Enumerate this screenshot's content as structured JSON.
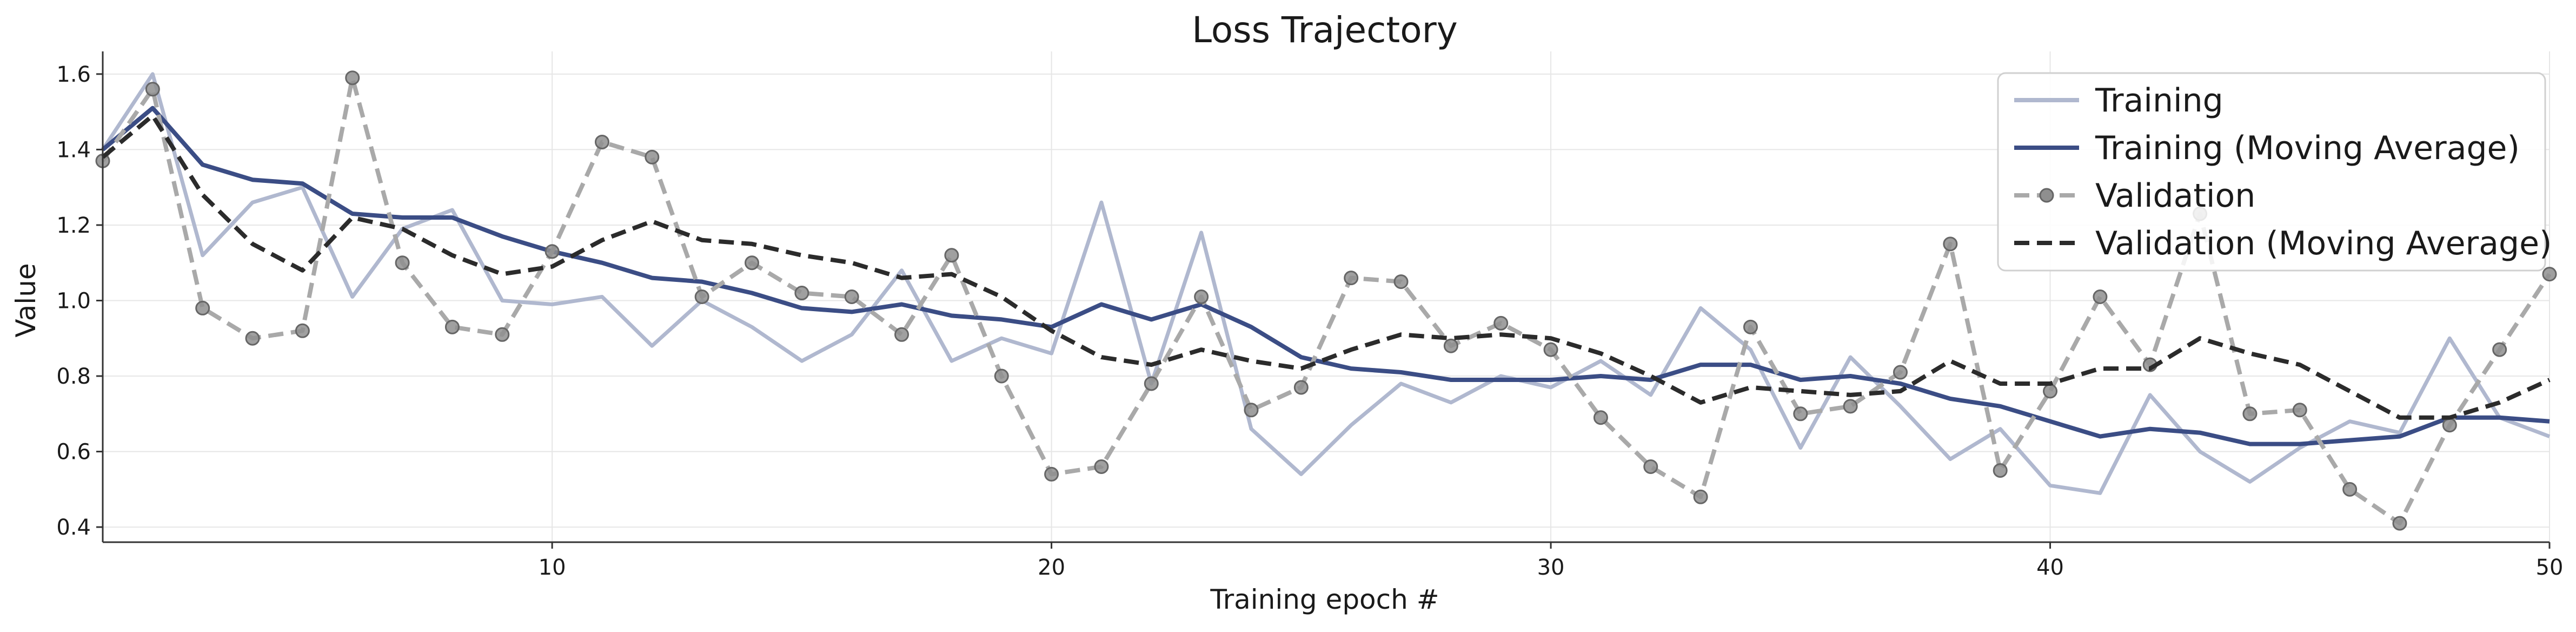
{
  "chart_data": {
    "type": "line",
    "title": "Loss Trajectory",
    "xlabel": "Training epoch #",
    "ylabel": "Value",
    "xlim": [
      1,
      50
    ],
    "ylim": [
      0.36,
      1.66
    ],
    "xticks": [
      10,
      20,
      30,
      40,
      50
    ],
    "yticks": [
      0.4,
      0.6,
      0.8,
      1.0,
      1.2,
      1.4,
      1.6
    ],
    "xtick_labels": [
      "10",
      "20",
      "30",
      "40",
      "50"
    ],
    "ytick_labels": [
      "0.4",
      "0.6",
      "0.8",
      "1.0",
      "1.2",
      "1.4",
      "1.6"
    ],
    "grid": true,
    "legend_position": "top-right",
    "x": [
      1,
      2,
      3,
      4,
      5,
      6,
      7,
      8,
      9,
      10,
      11,
      12,
      13,
      14,
      15,
      16,
      17,
      18,
      19,
      20,
      21,
      22,
      23,
      24,
      25,
      26,
      27,
      28,
      29,
      30,
      31,
      32,
      33,
      34,
      35,
      36,
      37,
      38,
      39,
      40,
      41,
      42,
      43,
      44,
      45,
      46,
      47,
      48,
      49,
      50
    ],
    "series": [
      {
        "name": "Training",
        "color": "#b0b8cf",
        "style": "solid",
        "markers": false,
        "values": [
          1.4,
          1.6,
          1.12,
          1.26,
          1.3,
          1.01,
          1.19,
          1.24,
          1.0,
          0.99,
          1.01,
          0.88,
          1.0,
          0.93,
          0.84,
          0.91,
          1.08,
          0.84,
          0.9,
          0.86,
          1.26,
          0.78,
          1.18,
          0.66,
          0.54,
          0.67,
          0.78,
          0.73,
          0.8,
          0.77,
          0.84,
          0.75,
          0.98,
          0.87,
          0.61,
          0.85,
          0.72,
          0.58,
          0.66,
          0.51,
          0.49,
          0.75,
          0.6,
          0.52,
          0.61,
          0.68,
          0.65,
          0.9,
          0.69,
          0.64
        ]
      },
      {
        "name": "Training (Moving Average)",
        "color": "#3b4d85",
        "style": "solid",
        "markers": false,
        "values": [
          1.4,
          1.51,
          1.36,
          1.32,
          1.31,
          1.23,
          1.22,
          1.22,
          1.17,
          1.13,
          1.1,
          1.06,
          1.05,
          1.02,
          0.98,
          0.97,
          0.99,
          0.96,
          0.95,
          0.93,
          0.99,
          0.95,
          0.99,
          0.93,
          0.85,
          0.82,
          0.81,
          0.79,
          0.79,
          0.79,
          0.8,
          0.79,
          0.83,
          0.83,
          0.79,
          0.8,
          0.78,
          0.74,
          0.72,
          0.68,
          0.64,
          0.66,
          0.65,
          0.62,
          0.62,
          0.63,
          0.64,
          0.69,
          0.69,
          0.68
        ]
      },
      {
        "name": "Validation",
        "color": "#a9a9a9",
        "style": "dashed",
        "markers": true,
        "values": [
          1.37,
          1.56,
          0.98,
          0.9,
          0.92,
          1.59,
          1.1,
          0.93,
          0.91,
          1.13,
          1.42,
          1.38,
          1.01,
          1.1,
          1.02,
          1.01,
          0.91,
          1.12,
          0.8,
          0.54,
          0.56,
          0.78,
          1.01,
          0.71,
          0.77,
          1.06,
          1.05,
          0.88,
          0.94,
          0.87,
          0.69,
          0.56,
          0.48,
          0.93,
          0.7,
          0.72,
          0.81,
          1.15,
          0.55,
          0.76,
          1.01,
          0.83,
          1.23,
          0.7,
          0.71,
          0.5,
          0.41,
          0.67,
          0.87,
          1.07
        ]
      },
      {
        "name": "Validation (Moving Average)",
        "color": "#2b2b2b",
        "style": "dashed",
        "markers": false,
        "values": [
          1.38,
          1.49,
          1.28,
          1.15,
          1.08,
          1.22,
          1.19,
          1.12,
          1.07,
          1.09,
          1.16,
          1.21,
          1.16,
          1.15,
          1.12,
          1.1,
          1.06,
          1.07,
          1.01,
          0.92,
          0.85,
          0.83,
          0.87,
          0.84,
          0.82,
          0.87,
          0.91,
          0.9,
          0.91,
          0.9,
          0.86,
          0.8,
          0.73,
          0.77,
          0.76,
          0.75,
          0.76,
          0.84,
          0.78,
          0.78,
          0.82,
          0.82,
          0.9,
          0.86,
          0.83,
          0.76,
          0.69,
          0.69,
          0.73,
          0.79
        ]
      }
    ]
  }
}
